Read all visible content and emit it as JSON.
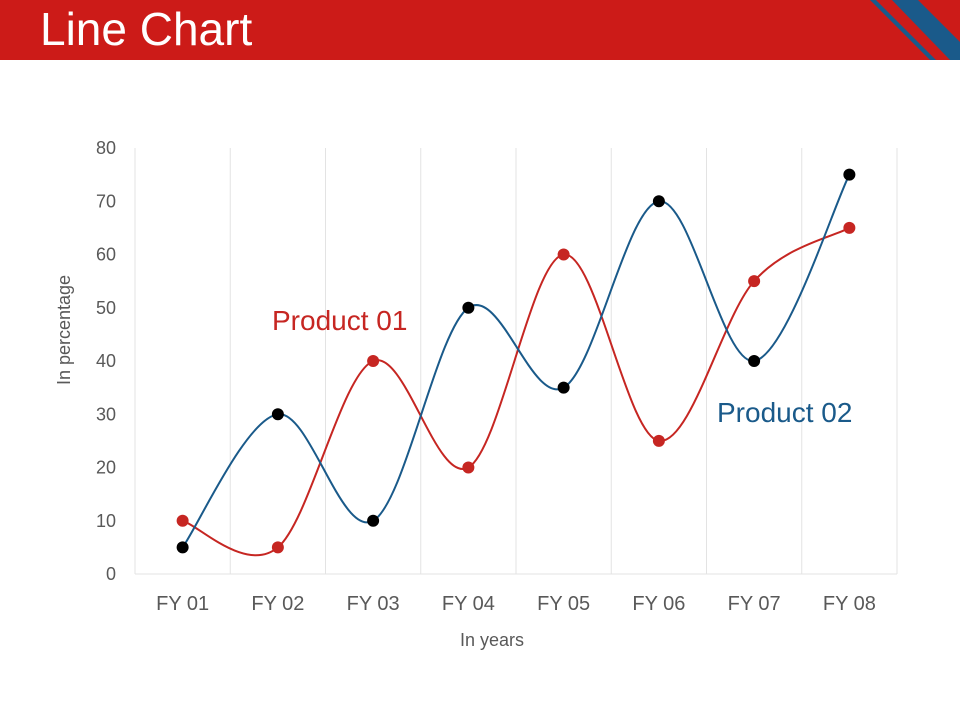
{
  "header": {
    "title": "Line Chart"
  },
  "colors": {
    "header_bg": "#cc1b18",
    "accent_blue": "#1a5a8a",
    "product01": "#c62622",
    "product02": "#1a5a8a",
    "marker_product02": "#000000"
  },
  "chart_data": {
    "type": "line",
    "categories": [
      "FY 01",
      "FY 02",
      "FY 03",
      "FY 04",
      "FY 05",
      "FY 06",
      "FY 07",
      "FY 08"
    ],
    "series": [
      {
        "name": "Product 01",
        "values": [
          10,
          5,
          40,
          20,
          60,
          25,
          55,
          65
        ]
      },
      {
        "name": "Product 02",
        "values": [
          5,
          30,
          10,
          50,
          35,
          70,
          40,
          75
        ]
      }
    ],
    "title": "",
    "xlabel": "In years",
    "ylabel": "In percentage",
    "ylim": [
      0,
      80
    ],
    "yticks": [
      0,
      10,
      20,
      30,
      40,
      50,
      60,
      70,
      80
    ],
    "grid": "vertical",
    "legend": "inline labels",
    "smooth": true
  }
}
